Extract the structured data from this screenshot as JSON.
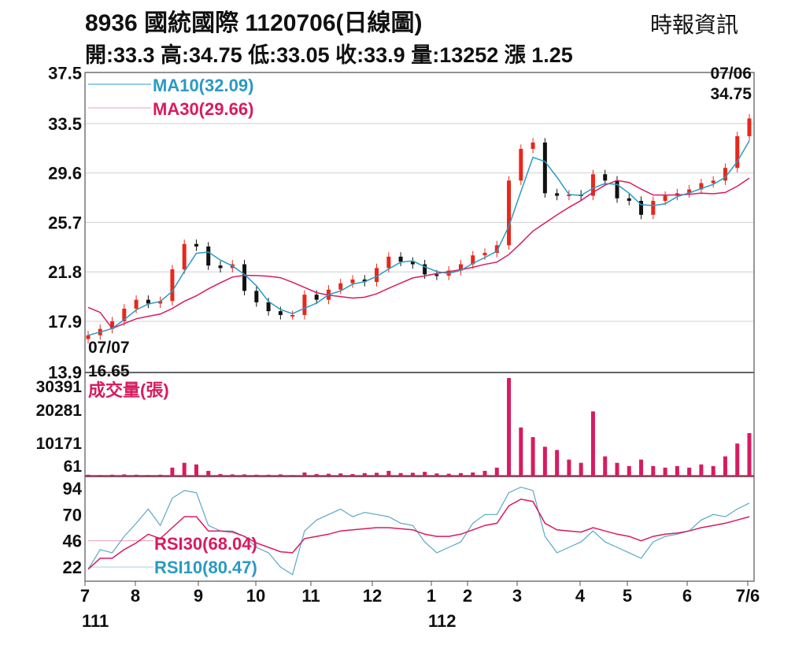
{
  "header": {
    "title": "8936  國統國際 1120706(日線圖)",
    "source": "時報資訊",
    "ohlc": "開:33.3 高:34.75 低:33.05 收:33.9 量:13252 漲 1.25"
  },
  "chart_data": {
    "type": "candlestick",
    "colors": {
      "up": "#e8271b",
      "down": "#111111",
      "ma10": "#2a9ac4",
      "ma30": "#d81b60",
      "volume": "#d81b60",
      "rsi10": "#5aa8c8",
      "rsi30": "#d81b60",
      "grid": "#d0d0d0"
    },
    "price_axis": {
      "ticks": [
        "37.5",
        "33.5",
        "29.6",
        "25.7",
        "21.8",
        "17.9",
        "13.9"
      ],
      "range": [
        13.9,
        37.5
      ]
    },
    "volume_axis": {
      "ticks": [
        "30391",
        "20281",
        "10171",
        "61"
      ],
      "range": [
        0,
        30391
      ]
    },
    "rsi_axis": {
      "ticks": [
        "94",
        "70",
        "46",
        "22"
      ],
      "range": [
        22,
        94
      ]
    },
    "x_ticks": [
      "7",
      "8",
      "9",
      "10",
      "11",
      "12",
      "1",
      "2",
      "3",
      "4",
      "5",
      "6",
      "7/6"
    ],
    "year_labels": [
      "111",
      "112"
    ],
    "legend": {
      "ma10": "MA10(32.09)",
      "ma30": "MA30(29.66)",
      "volume": "成交量(張)",
      "rsi30": "RSI30(68.04)",
      "rsi10": "RSI10(80.47)"
    },
    "annotations": {
      "high_date": "07/06",
      "high_value": "34.75",
      "low_date": "07/07",
      "low_value": "16.65"
    },
    "closes": [
      16.8,
      17.3,
      17.9,
      18.9,
      19.6,
      19.3,
      19.5,
      22.0,
      24.0,
      23.8,
      22.3,
      22.1,
      22.4,
      20.3,
      19.4,
      18.7,
      18.4,
      18.4,
      20.0,
      19.6,
      20.4,
      20.9,
      21.2,
      21.0,
      22.1,
      23.0,
      22.6,
      22.4,
      21.6,
      21.5,
      21.9,
      22.4,
      23.1,
      23.3,
      23.9,
      29.0,
      31.5,
      32.0,
      28.0,
      27.8,
      27.9,
      27.8,
      29.5,
      29.0,
      27.6,
      27.4,
      26.3,
      27.4,
      27.8,
      28.0,
      28.3,
      28.8,
      29.0,
      30.0,
      32.5,
      33.9
    ],
    "volumes": [
      300,
      200,
      300,
      400,
      300,
      200,
      300,
      2500,
      4000,
      3500,
      1500,
      500,
      400,
      400,
      300,
      300,
      400,
      200,
      1000,
      500,
      600,
      700,
      500,
      800,
      900,
      1500,
      800,
      900,
      1200,
      700,
      600,
      800,
      1000,
      1500,
      2500,
      30391,
      15000,
      12000,
      9000,
      8000,
      5000,
      4000,
      20000,
      6000,
      4000,
      3000,
      5000,
      3000,
      2500,
      3000,
      2500,
      3500,
      3000,
      6000,
      10000,
      13252
    ],
    "rsi10": [
      20,
      38,
      35,
      50,
      62,
      75,
      60,
      85,
      92,
      90,
      60,
      55,
      55,
      50,
      40,
      35,
      22,
      15,
      55,
      65,
      70,
      75,
      68,
      72,
      70,
      68,
      62,
      60,
      45,
      35,
      40,
      45,
      62,
      70,
      70,
      90,
      95,
      92,
      50,
      35,
      40,
      45,
      55,
      45,
      40,
      35,
      30,
      45,
      50,
      52,
      55,
      65,
      70,
      68,
      75,
      80.47
    ],
    "rsi30": [
      20,
      30,
      30,
      38,
      44,
      52,
      48,
      58,
      68,
      68,
      55,
      55,
      54,
      50,
      44,
      40,
      36,
      35,
      48,
      50,
      52,
      55,
      56,
      57,
      58,
      58,
      57,
      56,
      52,
      50,
      50,
      52,
      56,
      60,
      62,
      78,
      84,
      82,
      62,
      56,
      55,
      54,
      58,
      55,
      52,
      50,
      46,
      50,
      52,
      53,
      55,
      58,
      60,
      62,
      65,
      68.04
    ]
  }
}
